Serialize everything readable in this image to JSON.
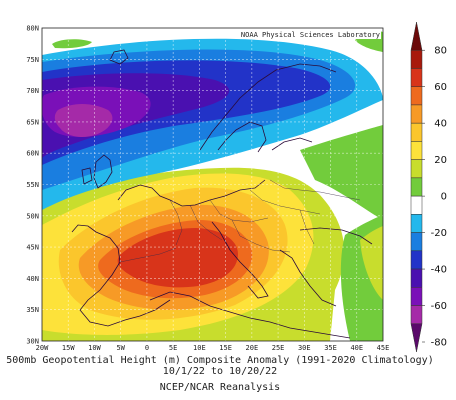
{
  "map": {
    "credit": "NOAA Physical Sciences Laboratory",
    "lat_labels": [
      "80N",
      "75N",
      "70N",
      "65N",
      "60N",
      "55N",
      "50N",
      "45N",
      "40N",
      "35N",
      "30N"
    ],
    "lon_labels": [
      "20W",
      "15W",
      "10W",
      "5W",
      "0",
      "5E",
      "10E",
      "15E",
      "20E",
      "25E",
      "30E",
      "35E",
      "40E",
      "45E"
    ],
    "extent": {
      "lon": [
        -20,
        45
      ],
      "lat": [
        30,
        80
      ]
    }
  },
  "colorbar": {
    "ticks": [
      "80",
      "60",
      "40",
      "20",
      "0",
      "-20",
      "-40",
      "-60",
      "-80"
    ],
    "colors": [
      "#6b0a0a",
      "#a81a0c",
      "#d8341a",
      "#ee6a1e",
      "#f79a26",
      "#fbc62c",
      "#fde23a",
      "#c8dd2d",
      "#72cc3c",
      "#ffffff",
      "#24b8ec",
      "#1a7ee0",
      "#2233c8",
      "#4a10b0",
      "#7a10b8",
      "#a52aa8",
      "#5a0a6a"
    ]
  },
  "caption": {
    "line1": "500mb Geopotential Height (m) Composite Anomaly (1991-2020 Climatology)",
    "line2": "10/1/22  to 10/20/22",
    "line3": "NCEP/NCAR Reanalysis"
  }
}
